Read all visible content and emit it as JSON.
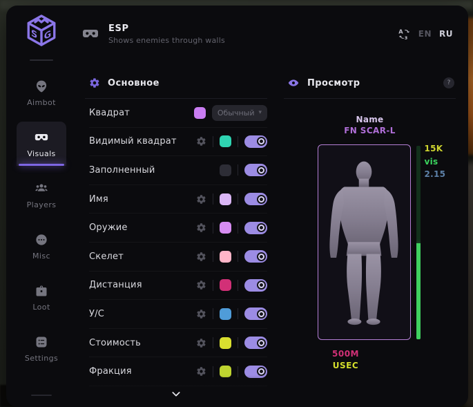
{
  "header": {
    "title": "ESP",
    "subtitle": "Shows enemies through walls",
    "language": {
      "options": [
        {
          "code": "EN",
          "selected": false
        },
        {
          "code": "RU",
          "selected": true
        }
      ]
    }
  },
  "sidebar": {
    "items": [
      {
        "id": "aimbot",
        "label": "Aimbot",
        "icon": "alien-icon",
        "active": false
      },
      {
        "id": "visuals",
        "label": "Visuals",
        "icon": "goggles-icon",
        "active": true
      },
      {
        "id": "players",
        "label": "Players",
        "icon": "players-icon",
        "active": false
      },
      {
        "id": "misc",
        "label": "Misc",
        "icon": "chat-icon",
        "active": false
      },
      {
        "id": "loot",
        "label": "Loot",
        "icon": "briefcase-icon",
        "active": false
      },
      {
        "id": "settings",
        "label": "Settings",
        "icon": "list-icon",
        "active": false
      }
    ]
  },
  "main": {
    "section_title": "Основное",
    "rows": [
      {
        "label": "Квадрат",
        "gear": false,
        "swatch": "#c97df2",
        "control": "dropdown",
        "value": "Обычный"
      },
      {
        "label": "Видимый квадрат",
        "gear": true,
        "swatch": "#2fd4b2",
        "control": "toggle",
        "on": true
      },
      {
        "label": "Заполненный",
        "gear": false,
        "swatch": "#2d2d36",
        "control": "toggle",
        "on": true
      },
      {
        "label": "Имя",
        "gear": true,
        "swatch": "#dab6f5",
        "control": "toggle",
        "on": true
      },
      {
        "label": "Оружие",
        "gear": true,
        "swatch": "#d78df2",
        "control": "toggle",
        "on": true
      },
      {
        "label": "Скелет",
        "gear": true,
        "swatch": "#ffb5c8",
        "control": "toggle",
        "on": true
      },
      {
        "label": "Дистанция",
        "gear": true,
        "swatch": "#d23077",
        "control": "toggle",
        "on": true
      },
      {
        "label": "У/С",
        "gear": true,
        "swatch": "#4f9cd9",
        "control": "toggle",
        "on": true
      },
      {
        "label": "Стоимость",
        "gear": true,
        "swatch": "#d9df2f",
        "control": "toggle",
        "on": true
      },
      {
        "label": "Фракция",
        "gear": true,
        "swatch": "#bed430",
        "control": "toggle",
        "on": true
      }
    ]
  },
  "preview": {
    "section_title": "Просмотр",
    "help_badge": "?",
    "name_label": "Name",
    "weapon_name": "FN SCAR-L",
    "stats": [
      {
        "text": "15K",
        "color": "#cdd32f"
      },
      {
        "text": "vis",
        "color": "#3bd45e"
      },
      {
        "text": "2.15",
        "color": "#5d81a8"
      }
    ],
    "distance_text": "500M",
    "faction_text": "USEC",
    "colors": {
      "name": "#d8c6ec",
      "weapon": "#b06fd8",
      "distance": "#d23077",
      "faction": "#d4de2c",
      "health_fill": "#3fcf5f",
      "health_empty": "#12301b",
      "box_border": "#b57fd6"
    }
  }
}
